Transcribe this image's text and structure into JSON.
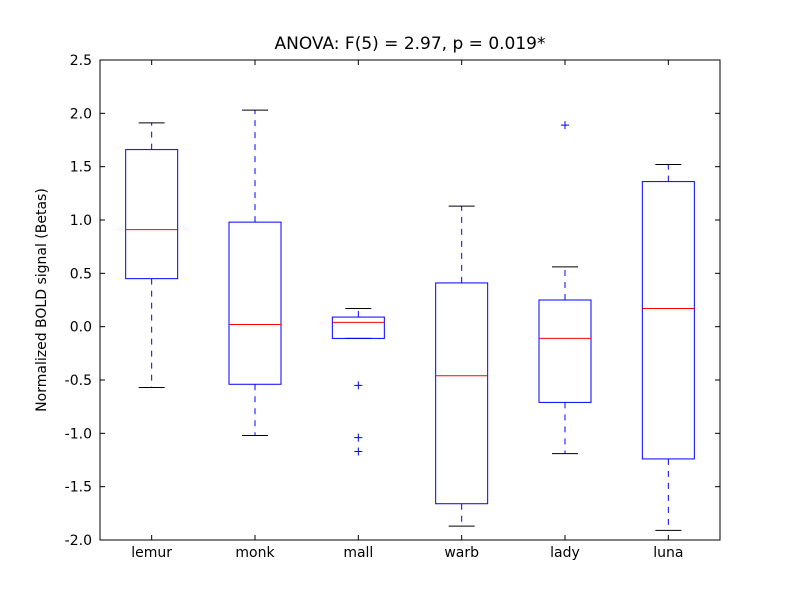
{
  "chart_data": {
    "type": "boxplot",
    "title": "ANOVA: F(5) = 2.97, p = 0.019*",
    "xlabel": "",
    "ylabel": "Normalized BOLD signal (Betas)",
    "ylim": [
      -2.0,
      2.5
    ],
    "yticks": [
      "-2.0",
      "-1.5",
      "-1.0",
      "-0.5",
      "0.0",
      "0.5",
      "1.0",
      "1.5",
      "2.0",
      "2.5"
    ],
    "grid": false,
    "categories": [
      "lemur",
      "monk",
      "mall",
      "warb",
      "lady",
      "luna"
    ],
    "boxes": [
      {
        "whisker_low": -0.57,
        "q1": 0.45,
        "median": 0.91,
        "q3": 1.66,
        "whisker_high": 1.91,
        "fliers": []
      },
      {
        "whisker_low": -1.02,
        "q1": -0.54,
        "median": 0.02,
        "q3": 0.98,
        "whisker_high": 2.03,
        "fliers": []
      },
      {
        "whisker_low": -0.11,
        "q1": -0.11,
        "median": 0.04,
        "q3": 0.09,
        "whisker_high": 0.17,
        "fliers": [
          -0.55,
          -1.04,
          -1.17
        ]
      },
      {
        "whisker_low": -1.87,
        "q1": -1.66,
        "median": -0.46,
        "q3": 0.41,
        "whisker_high": 1.13,
        "fliers": []
      },
      {
        "whisker_low": -1.19,
        "q1": -0.71,
        "median": -0.11,
        "q3": 0.25,
        "whisker_high": 0.56,
        "fliers": [
          1.89
        ]
      },
      {
        "whisker_low": -1.91,
        "q1": -1.24,
        "median": 0.17,
        "q3": 1.36,
        "whisker_high": 1.52,
        "fliers": []
      }
    ],
    "colors": {
      "box": "#0000ff",
      "median": "#ff0000",
      "cap": "#000000",
      "flier": "#0000ff"
    }
  }
}
